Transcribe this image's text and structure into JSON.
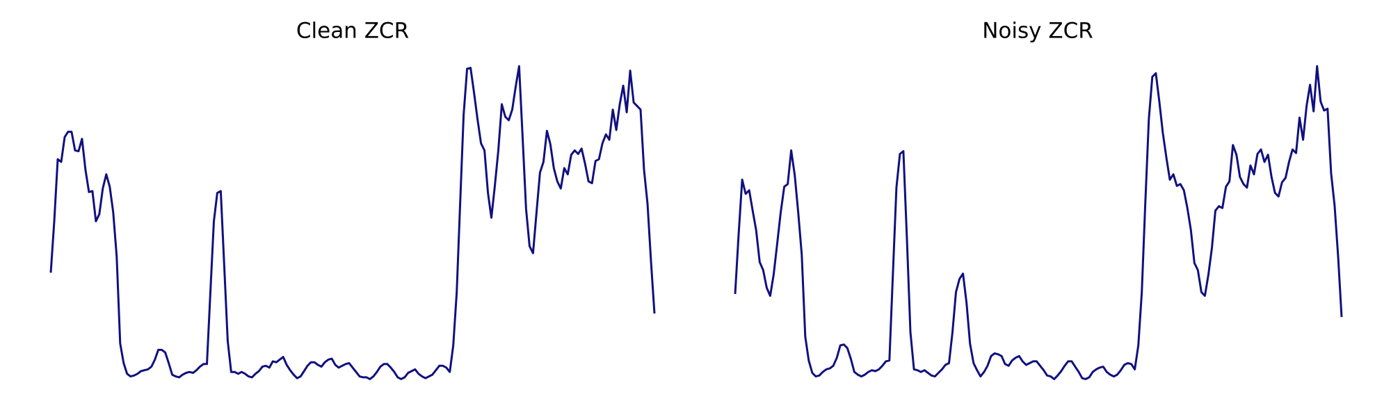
{
  "chart_data": [
    {
      "type": "line",
      "title": "Clean ZCR",
      "color": "#10107f",
      "values": [
        122,
        180,
        250,
        247,
        275,
        281,
        281,
        260,
        259,
        273,
        238,
        213,
        214,
        180,
        188,
        217,
        233,
        219,
        190,
        140,
        42,
        20,
        8,
        5,
        6,
        8,
        11,
        12,
        13,
        16,
        24,
        35,
        35,
        32,
        20,
        7,
        5,
        4,
        7,
        9,
        10,
        9,
        12,
        16,
        19,
        19,
        100,
        180,
        212,
        214,
        130,
        45,
        10,
        10,
        8,
        10,
        8,
        5,
        4,
        8,
        11,
        16,
        17,
        15,
        22,
        21,
        24,
        27,
        18,
        12,
        7,
        3,
        5,
        11,
        17,
        21,
        21,
        18,
        16,
        21,
        24,
        25,
        18,
        15,
        17,
        19,
        20,
        15,
        10,
        5,
        4,
        4,
        2,
        5,
        10,
        16,
        19,
        19,
        15,
        10,
        4,
        2,
        4,
        9,
        11,
        13,
        8,
        5,
        3,
        5,
        7,
        12,
        17,
        17,
        15,
        10,
        40,
        100,
        200,
        300,
        352,
        353,
        325,
        295,
        268,
        260,
        212,
        184,
        220,
        260,
        312,
        298,
        294,
        306,
        332,
        355,
        275,
        194,
        152,
        144,
        190,
        235,
        247,
        282,
        267,
        240,
        225,
        217,
        240,
        233,
        255,
        260,
        256,
        262,
        245,
        225,
        223,
        248,
        250,
        268,
        278,
        272,
        306,
        283,
        312,
        333,
        303,
        350,
        314,
        310,
        306,
        238,
        200,
        135,
        76
      ]
    },
    {
      "type": "line",
      "title": "Noisy ZCR",
      "color": "#10107f",
      "values": [
        98,
        165,
        227,
        211,
        215,
        192,
        170,
        134,
        125,
        105,
        96,
        120,
        155,
        190,
        219,
        222,
        260,
        232,
        190,
        142,
        50,
        23,
        9,
        5,
        6,
        10,
        13,
        14,
        17,
        26,
        40,
        41,
        37,
        25,
        10,
        7,
        5,
        7,
        10,
        12,
        11,
        13,
        17,
        22,
        23,
        120,
        218,
        256,
        259,
        160,
        55,
        13,
        12,
        10,
        12,
        9,
        6,
        5,
        9,
        13,
        18,
        20,
        55,
        100,
        115,
        121,
        88,
        42,
        20,
        12,
        5,
        10,
        17,
        28,
        31,
        30,
        28,
        19,
        17,
        23,
        26,
        28,
        22,
        18,
        20,
        22,
        22,
        17,
        12,
        6,
        5,
        2,
        6,
        11,
        17,
        22,
        22,
        16,
        10,
        3,
        2,
        4,
        10,
        13,
        15,
        16,
        10,
        7,
        5,
        7,
        12,
        18,
        20,
        19,
        13,
        40,
        100,
        200,
        295,
        343,
        347,
        315,
        280,
        252,
        227,
        233,
        220,
        222,
        215,
        195,
        170,
        133,
        125,
        100,
        96,
        120,
        150,
        192,
        197,
        195,
        219,
        225,
        266,
        255,
        230,
        222,
        218,
        243,
        233,
        256,
        261,
        247,
        255,
        230,
        212,
        208,
        224,
        229,
        247,
        261,
        257,
        297,
        272,
        310,
        334,
        304,
        355,
        315,
        305,
        307,
        234,
        198,
        140,
        72
      ]
    }
  ]
}
